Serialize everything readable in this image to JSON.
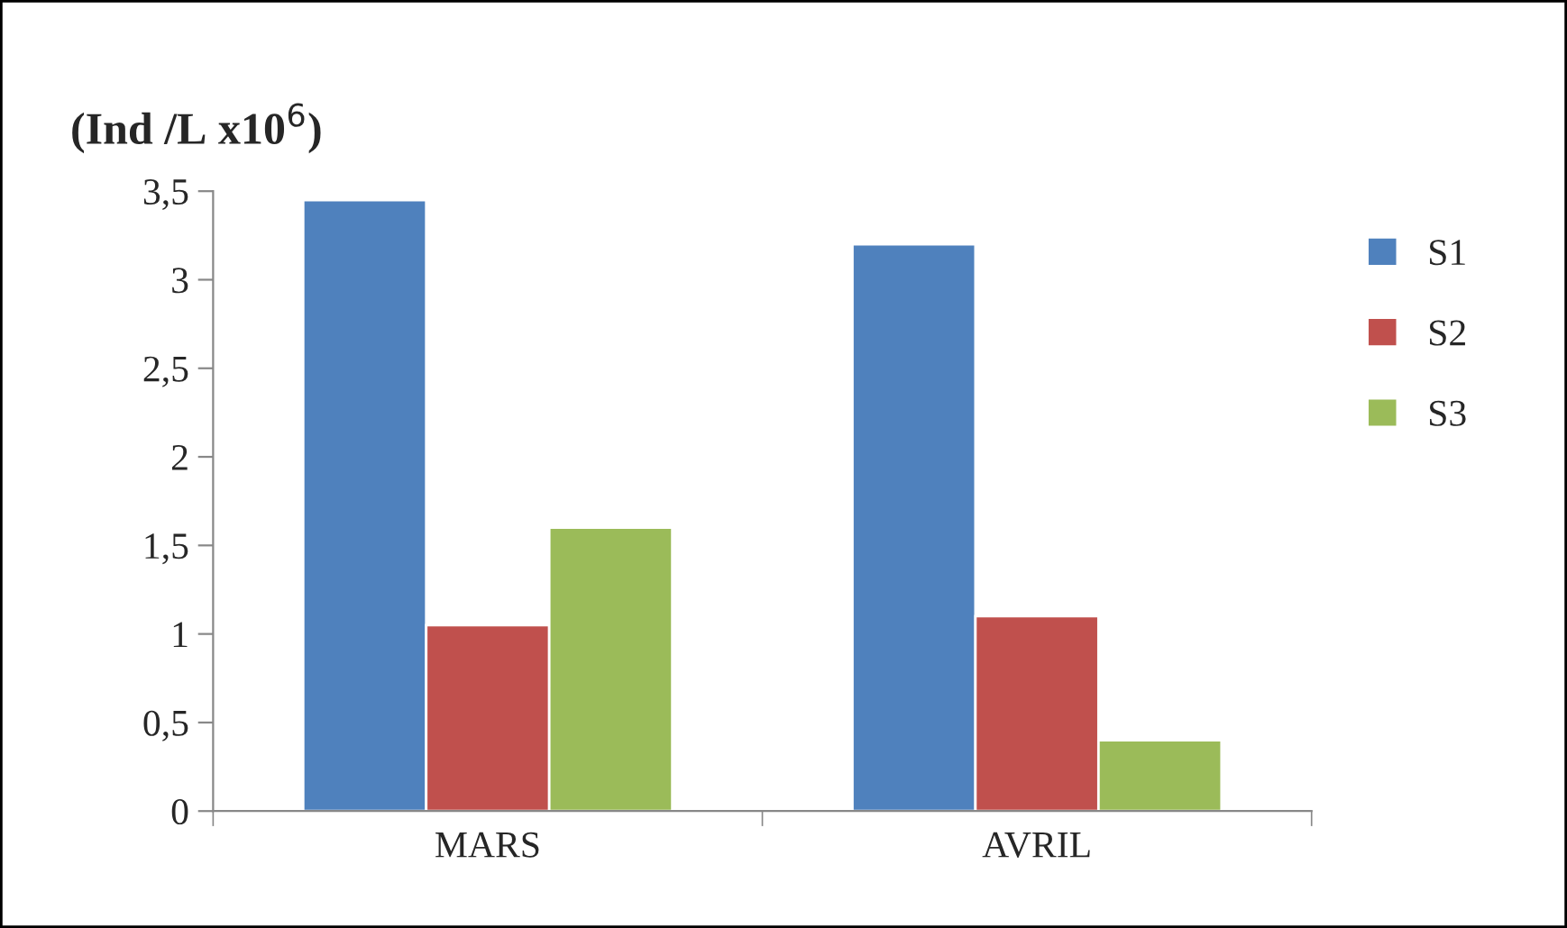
{
  "chart_data": {
    "type": "bar",
    "ylabel": "(Ind /L x10$^{6}$)",
    "categories": [
      "MARS",
      "AVRIL"
    ],
    "series": [
      {
        "name": "S1",
        "color": "#4f81bd",
        "values": [
          3.45,
          3.2
        ]
      },
      {
        "name": "S2",
        "color": "#c0504d",
        "values": [
          1.05,
          1.1
        ]
      },
      {
        "name": "S3",
        "color": "#9bbb59",
        "values": [
          1.6,
          0.4
        ]
      }
    ],
    "ylim": [
      0,
      3.5
    ],
    "yticks": [
      0,
      {
        "value": 0.5,
        "label": "0,5"
      },
      1,
      {
        "value": 1.5,
        "label": "1,5"
      },
      2,
      {
        "value": 2.5,
        "label": "2,5"
      },
      3,
      {
        "value": 3.5,
        "label": "3,5"
      }
    ],
    "grid": false,
    "legend": "right"
  }
}
